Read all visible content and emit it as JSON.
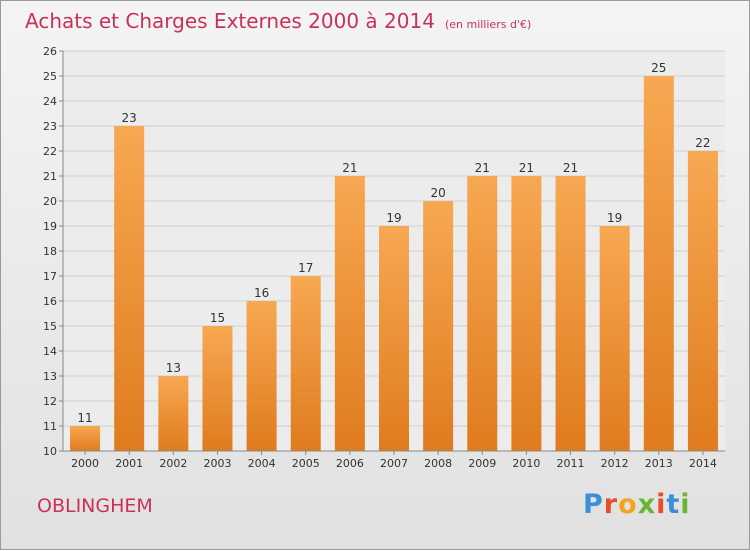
{
  "title": "Achats et Charges Externes 2000 à 2014",
  "title_unit": "(en milliers d'€)",
  "location": "OBLINGHEM",
  "brand": {
    "letters": [
      "P",
      "r",
      "o",
      "x",
      "i",
      "t",
      "i"
    ],
    "colors": [
      "#3a8fd8",
      "#e84c2b",
      "#f2a51a",
      "#6bb536",
      "#e84c2b",
      "#3a8fd8",
      "#6bb536"
    ]
  },
  "colors": {
    "bar_light": "#f7a852",
    "bar_dark": "#e07b1e",
    "title": "#c8325a"
  },
  "chart_data": {
    "type": "bar",
    "title": "Achats et Charges Externes 2000 à 2014",
    "subtitle": "(en milliers d'€)",
    "categories": [
      "2000",
      "2001",
      "2002",
      "2003",
      "2004",
      "2005",
      "2006",
      "2007",
      "2008",
      "2009",
      "2010",
      "2011",
      "2012",
      "2013",
      "2014"
    ],
    "values": [
      11,
      23,
      13,
      15,
      16,
      17,
      21,
      19,
      20,
      21,
      21,
      21,
      19,
      25,
      22
    ],
    "ylim": [
      10,
      26
    ],
    "yticks": [
      10,
      11,
      12,
      13,
      14,
      15,
      16,
      17,
      18,
      19,
      20,
      21,
      22,
      23,
      24,
      25,
      26
    ],
    "grid": true,
    "xlabel": "",
    "ylabel": ""
  }
}
